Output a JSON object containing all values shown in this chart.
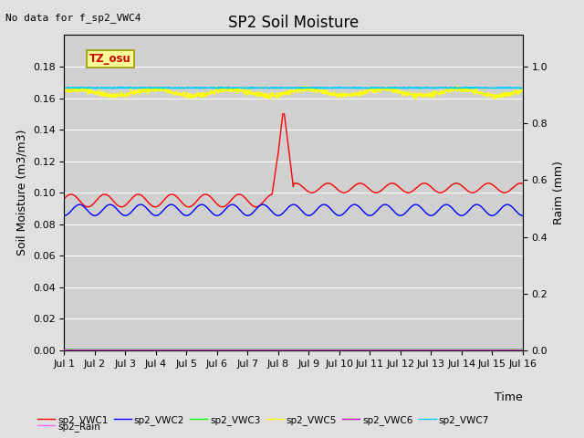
{
  "title": "SP2 Soil Moisture",
  "no_data_text": "No data for f_sp2_VWC4",
  "xlabel": "Time",
  "ylabel_left": "Soil Moisture (m3/m3)",
  "ylabel_right": "Raim (mm)",
  "tz_label": "TZ_osu",
  "xlim": [
    0,
    15
  ],
  "ylim_left": [
    0.0,
    0.2
  ],
  "ylim_right": [
    0.0,
    1.1111
  ],
  "yticks_left": [
    0.0,
    0.02,
    0.04,
    0.06,
    0.08,
    0.1,
    0.12,
    0.14,
    0.16,
    0.18
  ],
  "yticks_right": [
    0.0,
    0.2,
    0.4,
    0.6,
    0.8,
    1.0
  ],
  "xtick_labels": [
    "Jul 1",
    "Jul 2",
    "Jul 3",
    "Jul 4",
    "Jul 5",
    "Jul 6",
    "Jul 7",
    "Jul 8",
    "Jul 9",
    "Jul 10",
    "Jul 11",
    "Jul 12",
    "Jul 13",
    "Jul 14",
    "Jul 15",
    "Jul 16"
  ],
  "xtick_positions": [
    0,
    1,
    2,
    3,
    4,
    5,
    6,
    7,
    8,
    9,
    10,
    11,
    12,
    13,
    14,
    15
  ],
  "legend_entries": [
    {
      "label": "sp2_VWC1",
      "color": "#ff0000"
    },
    {
      "label": "sp2_VWC2",
      "color": "#0000ff"
    },
    {
      "label": "sp2_VWC3",
      "color": "#00ff00"
    },
    {
      "label": "sp2_VWC5",
      "color": "#ffff00"
    },
    {
      "label": "sp2_VWC6",
      "color": "#cc00cc"
    },
    {
      "label": "sp2_VWC7",
      "color": "#00ccff"
    },
    {
      "label": "sp2_Rain",
      "color": "#ff66ff"
    }
  ],
  "background_color": "#e0e0e0",
  "plot_bg_color": "#d0d0d0",
  "grid_color": "#ffffff",
  "title_fontsize": 12,
  "label_fontsize": 9,
  "tick_fontsize": 8
}
